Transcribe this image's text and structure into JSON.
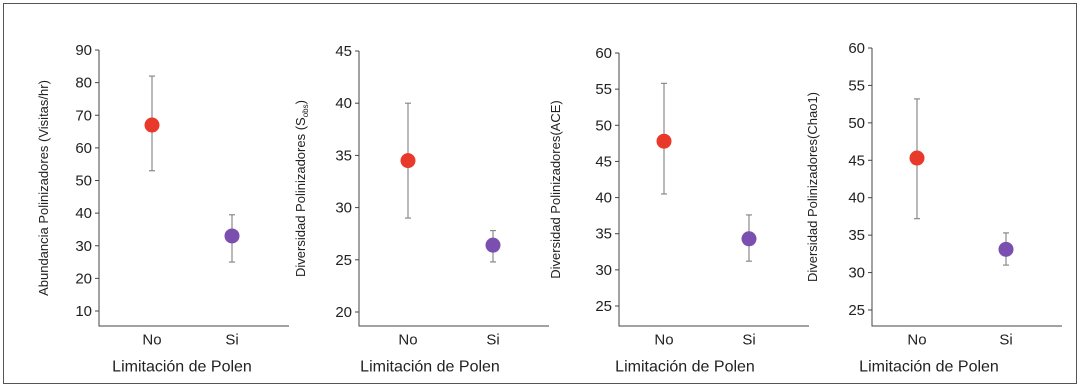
{
  "chart_data": [
    {
      "type": "scatter",
      "title": "",
      "xlabel": "Limitación de Polen",
      "ylabel": "Abundancia Polinizadores (Visitas/hr)",
      "categories": [
        "No",
        "Si"
      ],
      "ylim": [
        10,
        90
      ],
      "yticks": [
        "10",
        "20",
        "30",
        "40",
        "50",
        "60",
        "70",
        "80",
        "90"
      ],
      "points": [
        {
          "x": "No",
          "y": 67,
          "low": 53,
          "high": 82,
          "color": "#e8392b"
        },
        {
          "x": "Si",
          "y": 33,
          "low": 25,
          "high": 39.5,
          "color": "#7b4fb0"
        }
      ]
    },
    {
      "type": "scatter",
      "title": "",
      "xlabel": "Limitación de Polen",
      "ylabel": "Diversidad Polinizadores (S",
      "ylabel_sub": "obs",
      "ylabel_end": ")",
      "categories": [
        "No",
        "Si"
      ],
      "ylim": [
        20,
        45
      ],
      "yticks": [
        "20",
        "25",
        "30",
        "35",
        "40",
        "45"
      ],
      "points": [
        {
          "x": "No",
          "y": 34.5,
          "low": 29,
          "high": 40,
          "color": "#e8392b"
        },
        {
          "x": "Si",
          "y": 26.4,
          "low": 24.8,
          "high": 27.8,
          "color": "#7b4fb0"
        }
      ]
    },
    {
      "type": "scatter",
      "title": "",
      "xlabel": "Limitación de Polen",
      "ylabel": "Diversidad Polinizadores(ACE)",
      "categories": [
        "No",
        "Si"
      ],
      "ylim": [
        25,
        60
      ],
      "yticks": [
        "25",
        "30",
        "35",
        "40",
        "45",
        "50",
        "55",
        "60"
      ],
      "points": [
        {
          "x": "No",
          "y": 47.8,
          "low": 40.5,
          "high": 55.8,
          "color": "#e8392b"
        },
        {
          "x": "Si",
          "y": 34.3,
          "low": 31.2,
          "high": 37.6,
          "color": "#7b4fb0"
        }
      ]
    },
    {
      "type": "scatter",
      "title": "",
      "xlabel": "Limitación de Polen",
      "ylabel": "Diversidad Polinizadores(Chao1)",
      "categories": [
        "No",
        "Si"
      ],
      "ylim": [
        25,
        60
      ],
      "yticks": [
        "25",
        "30",
        "35",
        "40",
        "45",
        "50",
        "55",
        "60"
      ],
      "points": [
        {
          "x": "No",
          "y": 45.3,
          "low": 37.2,
          "high": 53.2,
          "color": "#e8392b"
        },
        {
          "x": "Si",
          "y": 33.1,
          "low": 31,
          "high": 35.3,
          "color": "#7b4fb0"
        }
      ]
    }
  ]
}
